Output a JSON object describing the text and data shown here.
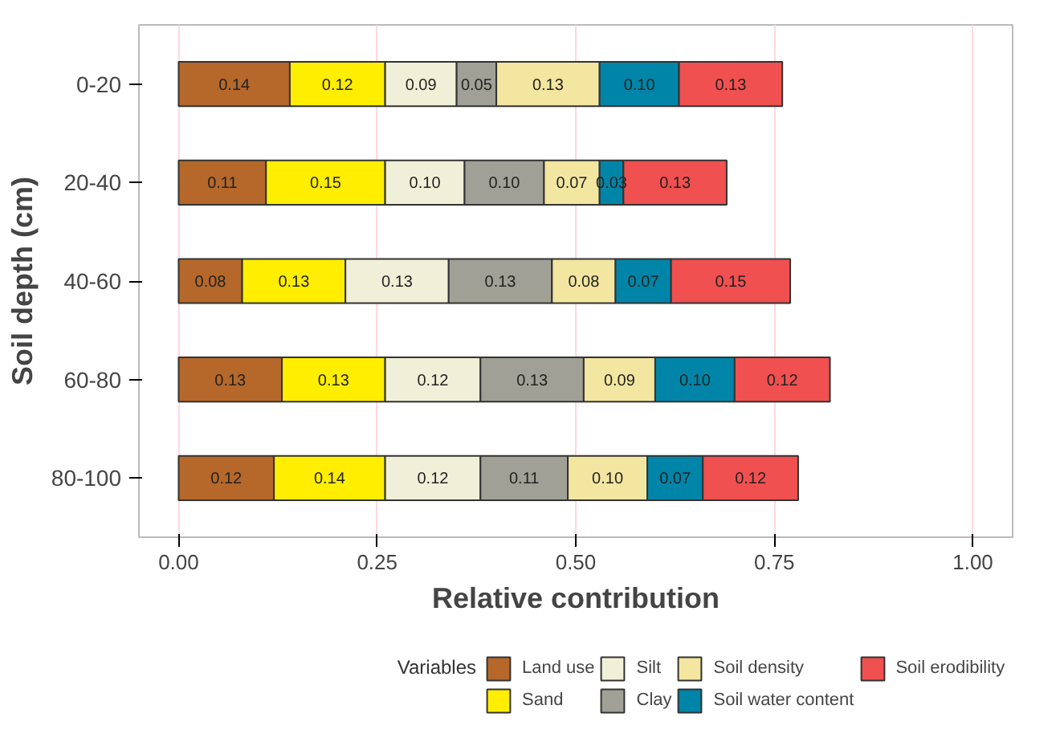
{
  "chart_data": {
    "type": "bar",
    "orientation": "horizontal",
    "stacked": true,
    "xlabel": "Relative contribution",
    "ylabel": "Soil depth (cm)",
    "legend_title": "Variables",
    "categories": [
      "0-20",
      "20-40",
      "40-60",
      "60-80",
      "80-100"
    ],
    "series": [
      {
        "name": "Land use",
        "color": "#b5682a",
        "values": [
          0.14,
          0.11,
          0.08,
          0.13,
          0.12
        ],
        "value_labels": [
          "0.14",
          "0.11",
          "0.08",
          "0.13",
          "0.12"
        ]
      },
      {
        "name": "Sand",
        "color": "#ffee00",
        "values": [
          0.12,
          0.15,
          0.13,
          0.13,
          0.14
        ],
        "value_labels": [
          "0.12",
          "0.15",
          "0.13",
          "0.13",
          "0.14"
        ]
      },
      {
        "name": "Silt",
        "color": "#f0f0d8",
        "values": [
          0.09,
          0.1,
          0.13,
          0.12,
          0.12
        ],
        "value_labels": [
          "0.09",
          "0.10",
          "0.13",
          "0.12",
          "0.12"
        ]
      },
      {
        "name": "Clay",
        "color": "#a0a096",
        "values": [
          0.05,
          0.1,
          0.13,
          0.13,
          0.11
        ],
        "value_labels": [
          "0.05",
          "0.10",
          "0.13",
          "0.13",
          "0.11"
        ]
      },
      {
        "name": "Soil density",
        "color": "#f2e6a0",
        "values": [
          0.13,
          0.07,
          0.08,
          0.09,
          0.1
        ],
        "value_labels": [
          "0.13",
          "0.07",
          "0.08",
          "0.09",
          "0.10"
        ]
      },
      {
        "name": "Soil water content",
        "color": "#0085a8",
        "values": [
          0.1,
          0.03,
          0.07,
          0.1,
          0.07
        ],
        "value_labels": [
          "0.10",
          "0.03",
          "0.07",
          "0.10",
          "0.07"
        ]
      },
      {
        "name": "Soil erodibility",
        "color": "#f05050",
        "values": [
          0.13,
          0.13,
          0.15,
          0.12,
          0.12
        ],
        "value_labels": [
          "0.13",
          "0.13",
          "0.15",
          "0.12",
          "0.12"
        ]
      }
    ],
    "xlim": [
      -0.05,
      1.05
    ],
    "xticks": [
      {
        "value": 0,
        "label": "0.00"
      },
      {
        "value": 0.25,
        "label": "0.25"
      },
      {
        "value": 0.5,
        "label": "0.50"
      },
      {
        "value": 0.75,
        "label": "0.75"
      },
      {
        "value": 1,
        "label": "1.00"
      }
    ],
    "grid": "x",
    "legend": "bottom"
  }
}
